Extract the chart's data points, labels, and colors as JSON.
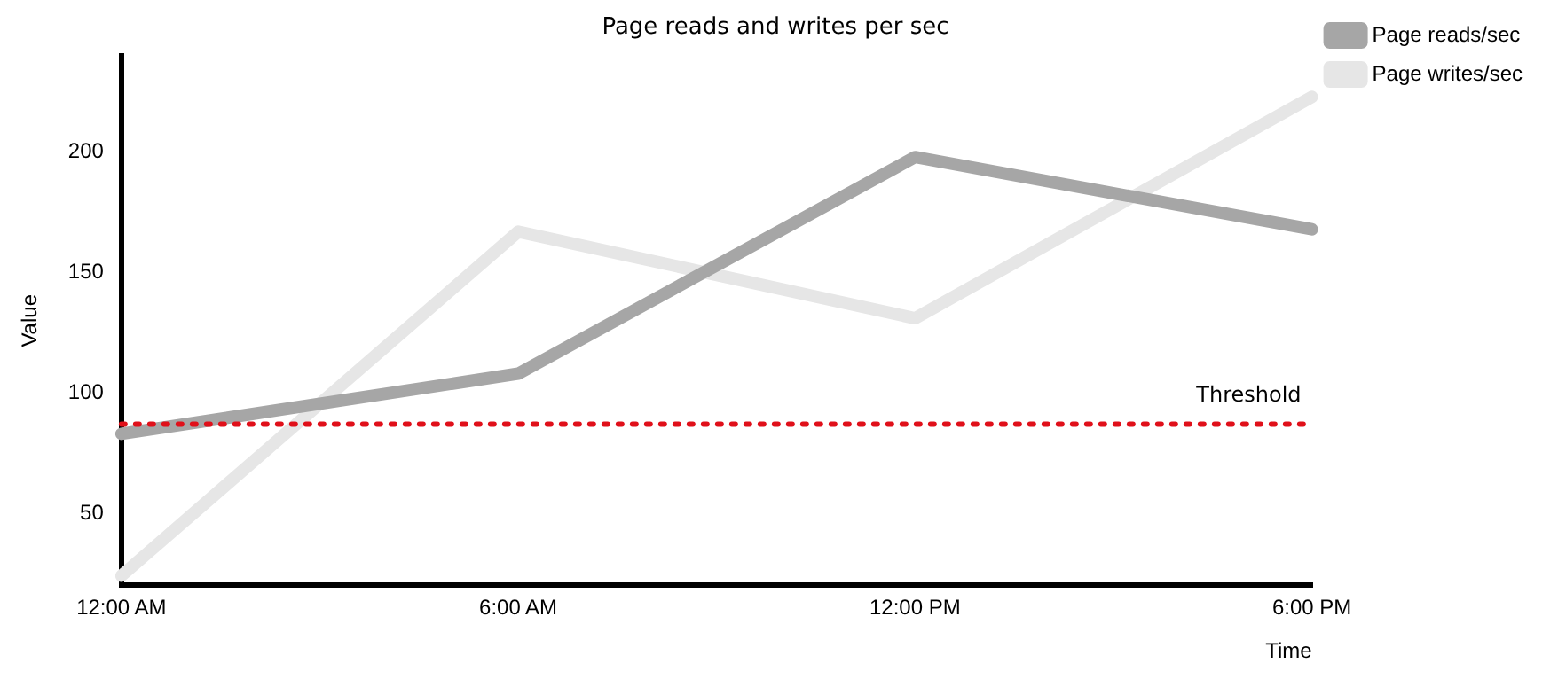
{
  "chart_data": {
    "type": "line",
    "title": "Page reads and writes per sec",
    "xlabel": "Time",
    "ylabel": "Value",
    "categories": [
      "12:00 AM",
      "6:00 AM",
      "12:00 PM",
      "6:00 PM"
    ],
    "series": [
      {
        "name": "Page reads/sec",
        "color": "#a6a6a6",
        "values": [
          83,
          108,
          198,
          168
        ]
      },
      {
        "name": "Page writes/sec",
        "color": "#e6e6e6",
        "values": [
          24,
          167,
          131,
          223
        ]
      }
    ],
    "ylim": [
      20,
      240
    ],
    "yticks": [
      50,
      100,
      150,
      200
    ],
    "grid": false,
    "legend": "top right",
    "marker": "none",
    "line_style": "solid",
    "ref_lines": [
      {
        "axis": "y",
        "value": 87,
        "label": "Threshold",
        "color": "#e0101a",
        "line_style": "dotted"
      }
    ]
  }
}
